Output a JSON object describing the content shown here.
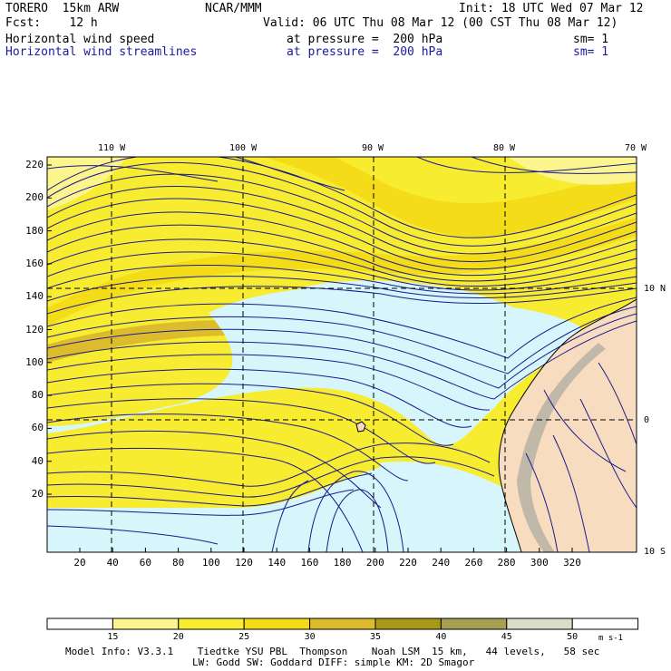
{
  "header": {
    "model": "TORERO  15km ARW",
    "center": "NCAR/MMM",
    "init": "Init: 18 UTC Wed 07 Mar 12",
    "forecast": "Fcst:    12 h",
    "valid": "Valid: 06 UTC Thu 08 Mar 12 (00 CST Thu 08 Mar 12)",
    "fields": [
      {
        "name": "Horizontal wind speed",
        "level": "at pressure =  200 hPa",
        "smooth": "sm= 1",
        "color": "#000000"
      },
      {
        "name": "Horizontal wind streamlines",
        "level": "at pressure =  200 hPa",
        "smooth": "sm= 1",
        "color": "#1a1aa0"
      }
    ]
  },
  "map": {
    "lon_labels": [
      "110 W",
      "100 W",
      "90 W",
      "80 W",
      "70 W"
    ],
    "lat_labels": [
      "10 N",
      "0",
      "10 S"
    ],
    "y_ticks": [
      "220",
      "200",
      "180",
      "160",
      "140",
      "120",
      "100",
      "80",
      "60",
      "40",
      "20"
    ],
    "x_ticks": [
      "20",
      "40",
      "60",
      "80",
      "100",
      "120",
      "140",
      "160",
      "180",
      "200",
      "220",
      "240",
      "260",
      "280",
      "300",
      "320"
    ],
    "colors": {
      "calm": "#d6f6fc",
      "land": "#f8dcc0",
      "terrain": "#a8a8a0",
      "streamline": "#1a1a8c"
    }
  },
  "colorbar": {
    "levels": [
      "15",
      "20",
      "25",
      "30",
      "35",
      "40",
      "45",
      "50"
    ],
    "colors": [
      "#ffffff",
      "#fcf48c",
      "#f8ec30",
      "#f4dc18",
      "#dcbc2c",
      "#a89818",
      "#a8a050",
      "#dcdcc8",
      "#ffffff"
    ],
    "units": "m s-1"
  },
  "footer": {
    "line1": "Model Info: V3.3.1    Tiedtke YSU PBL  Thompson    Noah LSM  15 km,   44 levels,   58 sec",
    "line2": "LW: Godd SW: Goddard DIFF: simple KM: 2D Smagor"
  }
}
